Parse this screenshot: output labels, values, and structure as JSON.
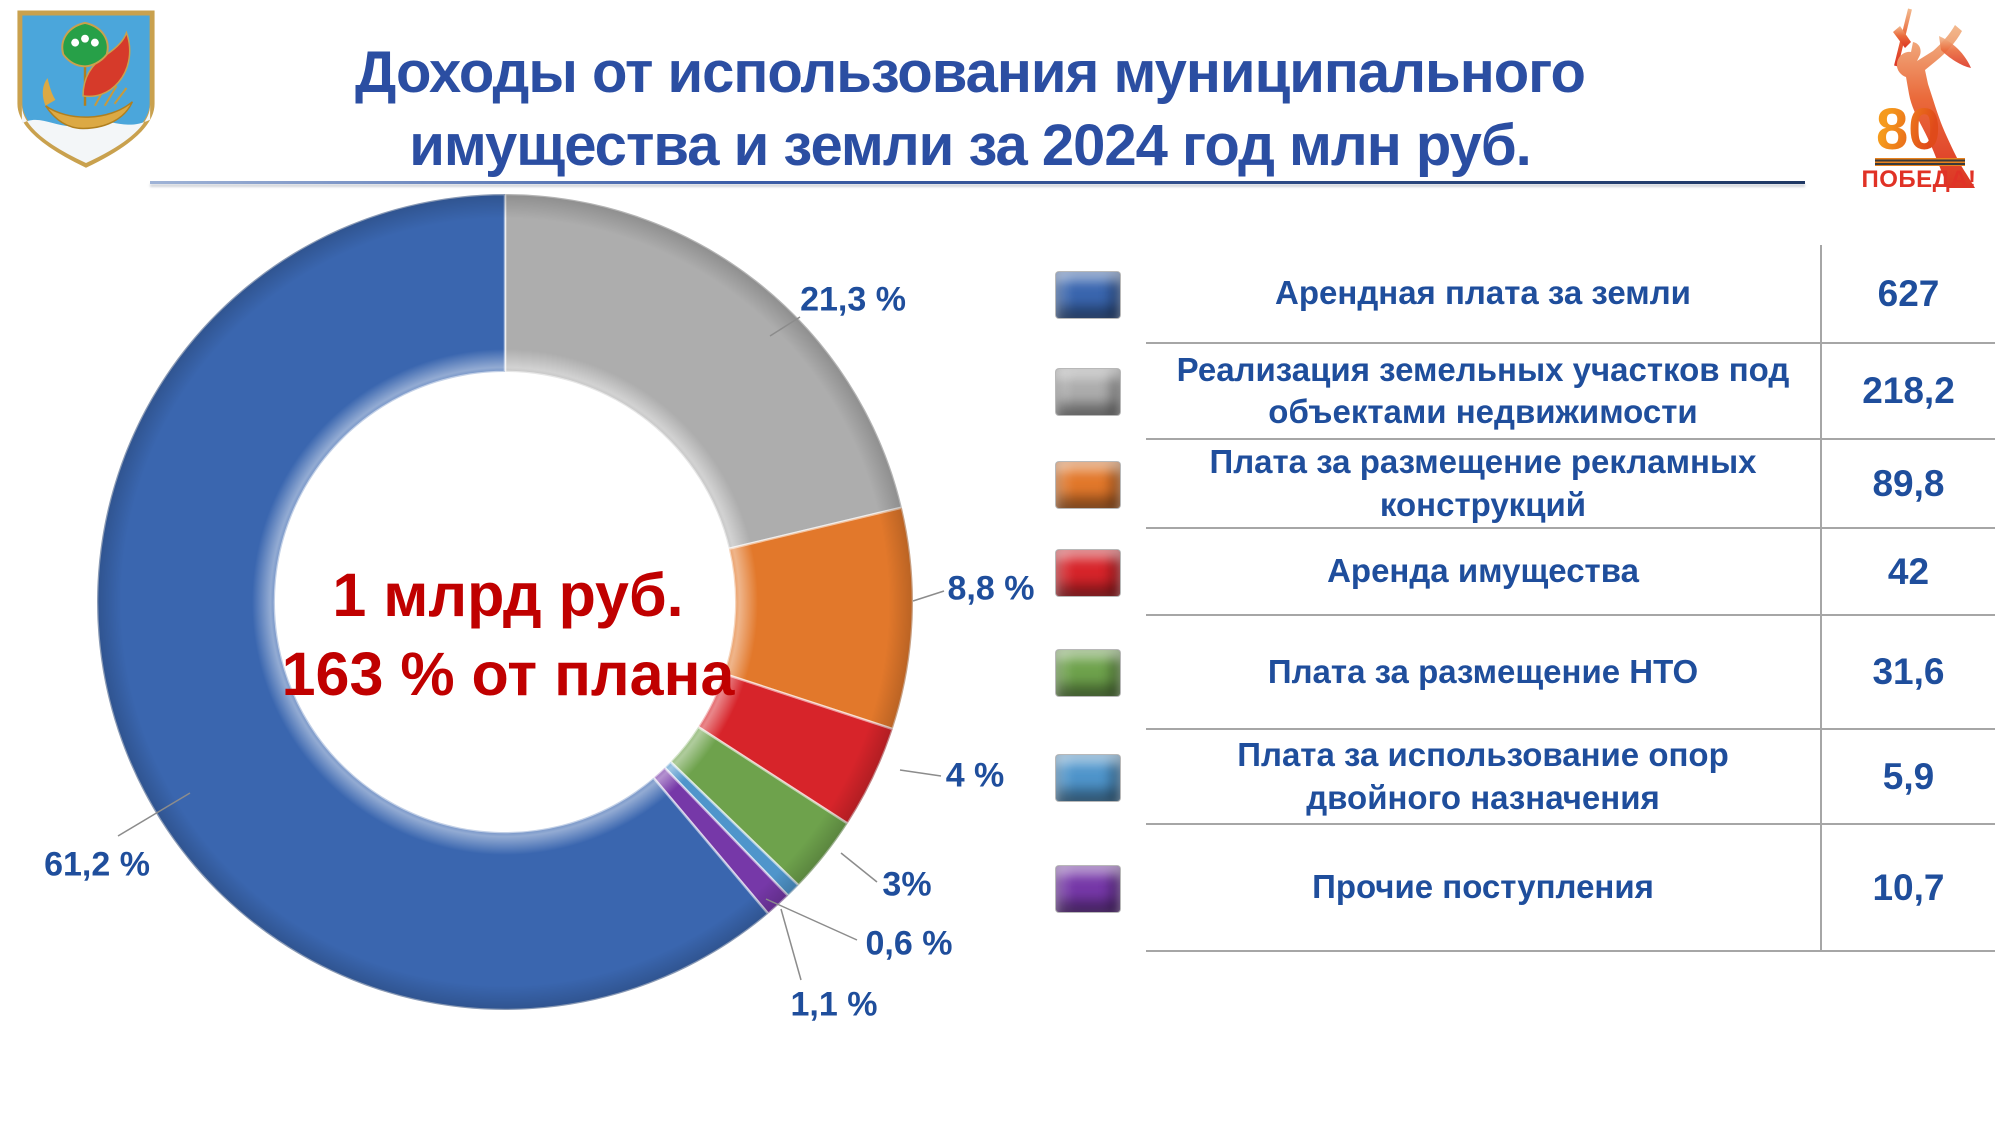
{
  "header": {
    "title_line1": "Доходы от использования муниципального",
    "title_line2": "имущества и земли за 2024 год млн руб.",
    "victory_80": "80",
    "victory_pobeda": "ПОБЕДА!"
  },
  "colors": {
    "title": "#2B4EA2",
    "label": "#1F4E9C",
    "center": "#C00000",
    "line": "#A6A6A6"
  },
  "chart_data": {
    "type": "pie",
    "donut": true,
    "title": "Доходы от использования муниципального имущества и земли за 2024 год млн руб.",
    "unit": "млн руб.",
    "center_line1": "1 млрд руб.",
    "center_line2": "163 % от плана",
    "legend_position": "right",
    "slices": [
      {
        "label": "Арендная плата за земли",
        "value": 627,
        "value_label": "627",
        "pct_label": "61,2 %",
        "color": "#3A66AF"
      },
      {
        "label": "Реализация земельных участков под объектами недвижимости",
        "value": 218.2,
        "value_label": "218,2",
        "pct_label": "21,3 %",
        "color": "#ADADAD"
      },
      {
        "label": "Плата за размещение рекламных конструкций",
        "value": 89.8,
        "value_label": "89,8",
        "pct_label": "8,8 %",
        "color": "#E2782B"
      },
      {
        "label": "Аренда имущества",
        "value": 42,
        "value_label": "42",
        "pct_label": "4 %",
        "color": "#D7242A"
      },
      {
        "label": "Плата за размещение НТО",
        "value": 31.6,
        "value_label": "31,6",
        "pct_label": "3%",
        "color": "#6EA24C"
      },
      {
        "label": "Плата за использование опор двойного назначения",
        "value": 5.9,
        "value_label": "5,9",
        "pct_label": "0,6 %",
        "color": "#4F95CB"
      },
      {
        "label": "Прочие поступления",
        "value": 10.7,
        "value_label": "10,7",
        "pct_label": "1,1 %",
        "color": "#7638A8"
      }
    ],
    "draw_order_from_top_clockwise": [
      1,
      2,
      3,
      4,
      5,
      6,
      0
    ]
  }
}
